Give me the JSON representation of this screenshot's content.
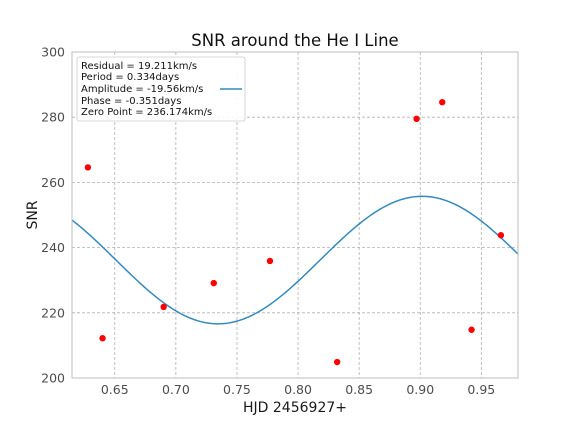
{
  "chart_data": {
    "type": "scatter",
    "title": "SNR around the He I Line",
    "xlabel": "HJD 2456927+",
    "ylabel": "SNR",
    "xlim": [
      0.615,
      0.98
    ],
    "ylim": [
      200,
      300
    ],
    "xticks": [
      0.65,
      0.7,
      0.75,
      0.8,
      0.85,
      0.9,
      0.95
    ],
    "yticks": [
      200,
      220,
      240,
      260,
      280,
      300
    ],
    "xtick_labels": [
      "0.65",
      "0.70",
      "0.75",
      "0.80",
      "0.85",
      "0.90",
      "0.95"
    ],
    "ytick_labels": [
      "200",
      "220",
      "240",
      "260",
      "280",
      "300"
    ],
    "grid": true,
    "legend_position": "top-left",
    "legend_lines": [
      "Residual = 19.211km/s",
      "Period = 0.334days",
      "Amplitude = -19.56km/s",
      "Phase = -0.351days",
      "Zero Point = 236.174km/s"
    ],
    "points": {
      "color": "#ff0000",
      "x": [
        0.628,
        0.64,
        0.69,
        0.731,
        0.777,
        0.832,
        0.897,
        0.918,
        0.942,
        0.966
      ],
      "y": [
        264.6,
        212.2,
        221.8,
        229.1,
        235.9,
        204.9,
        279.5,
        284.6,
        214.8,
        243.8
      ]
    },
    "fit": {
      "color": "#348abd",
      "period": 0.334,
      "amplitude": -19.56,
      "phase": -0.351,
      "zero_point": 236.174
    }
  }
}
